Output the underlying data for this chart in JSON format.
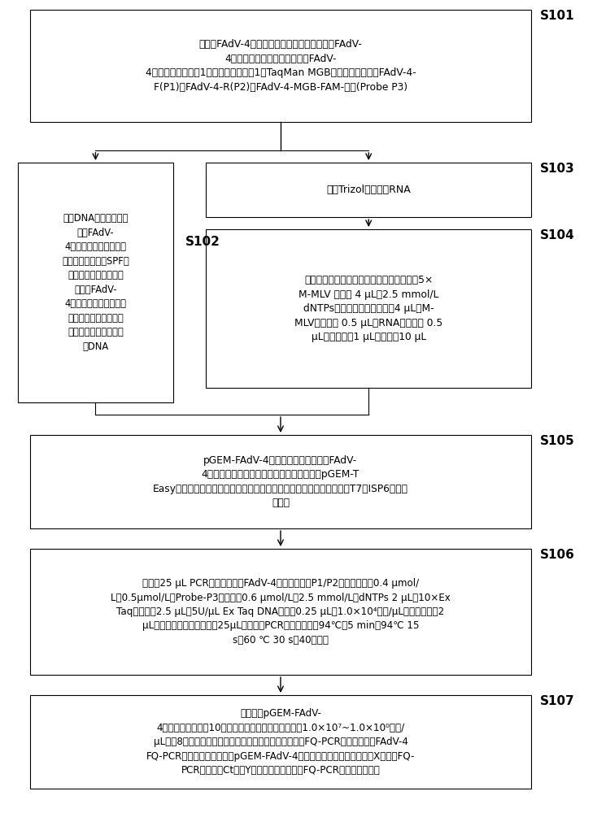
{
  "background_color": "#ffffff",
  "s101_text": "筛选出FAdV-4六邻体蛋白基因高度保守且具有FAdV-\n4型特异性基因序列，设计检测FAdV-\n4六邻体蛋白基因的1对特异性引物对和1个TaqMan MGB探针，分别命名为FAdV-4-\nF(P1)、FAdV-4-R(P2)和FAdV-4-MGB-FAM-探针(Probe P3)",
  "s102_text": "模板DNA的制备：以灭\n活的FAdV-\n4鸡胚绒毛尿囊膜病毒为\n阳性对照，以正常SPF鸡\n胚尿囊膜为阴性对照，\n与含有FAdV-\n4的拭子、气管、心脏、\n肝脏、肾脏、脾脏、心\n包积液等待检样品提取\n总DNA",
  "s103_text": "采用Trizol法提取总RNA",
  "s104_text": "反转录，每管反转录反应体系含如下成份：5×\nM-MLV 缓冲液 4 μL；2.5 mmol/L\ndNTPs（三磷酸脱氧核苷酸）4 μL；M-\nMLV反转录酶 0.5 μL；RNA酶抑制剂 0.5\nμL；随机引物1 μL；总体积10 μL",
  "s105_text": "pGEM-FAdV-4标准品的制备，将含有FAdV-\n4六邻体蛋白基因的阳性扩增产物分别克隆入pGEM-T\nEasy载体中，筛选阳性重组质粒送宝生物工程（大连）有限公司，采用T7和ISP6引物进\n行测序",
  "s106_text": "优化的25 μL PCR反应体系中，FAdV-4上、下游引物P1/P2终浓度分别为0.4 μmol/\nL、0.5μmol/L，Probe-P3终浓度为0.6 μmol/L，2.5 mmol/L，dNTPs 2 μL，10×Ex\nTaq酶缓冲液2.5 μL，5U/μL Ex Taq DNA聚合酶0.25 μL，1.0×10⁴拷贝/μL的质粒模板各2\nμL，去离子水补足至总体积25μL。优化的PCR反应程序为：94℃，5 min；94℃ 15\ns，60 ℃ 30 s，40个循环",
  "s107_text": "将获得的pGEM-FAdV-\n4阳性重组质粒进行10倍系列稀释，质粒终浓度调整为1.0×10⁷~1.0×10⁰拷贝/\nμL，共8个稀释度，以灭菌双蒸水为阴性对照，按优化的FQ-PCR反应条件进行FAdV-4\nFQ-PCR敏感性试验，分别以pGEM-FAdV-4阳性重组质粒起始模板浓度为X轴，以FQ-\nPCR循环次数Ct值为Y轴作回归曲线，建立FQ-PCR方法的标准曲线"
}
